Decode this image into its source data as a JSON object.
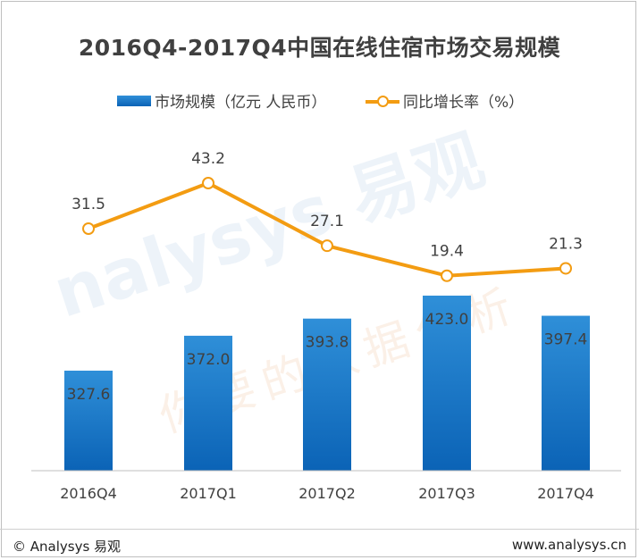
{
  "chart_data": {
    "type": "bar",
    "title": "2016Q4-2017Q4中国在线住宿市场交易规模",
    "categories": [
      "2016Q4",
      "2017Q1",
      "2017Q2",
      "2017Q3",
      "2017Q4"
    ],
    "series": [
      {
        "name": "市场规模（亿元 人民币）",
        "kind": "bar",
        "values": [
          327.6,
          372.0,
          393.8,
          423.0,
          397.4
        ],
        "color": "#1a75c9"
      },
      {
        "name": "同比增长率（%）",
        "kind": "line",
        "values": [
          31.5,
          43.2,
          27.1,
          19.4,
          21.3
        ],
        "color": "#f39c12"
      }
    ],
    "legend_position": "top",
    "grid": false
  },
  "footer": {
    "left": "© Analysys 易观",
    "right": "www.analysys.cn"
  },
  "watermark": {
    "brand": "nalysys 易观",
    "slogan": "你要的数据分析"
  }
}
